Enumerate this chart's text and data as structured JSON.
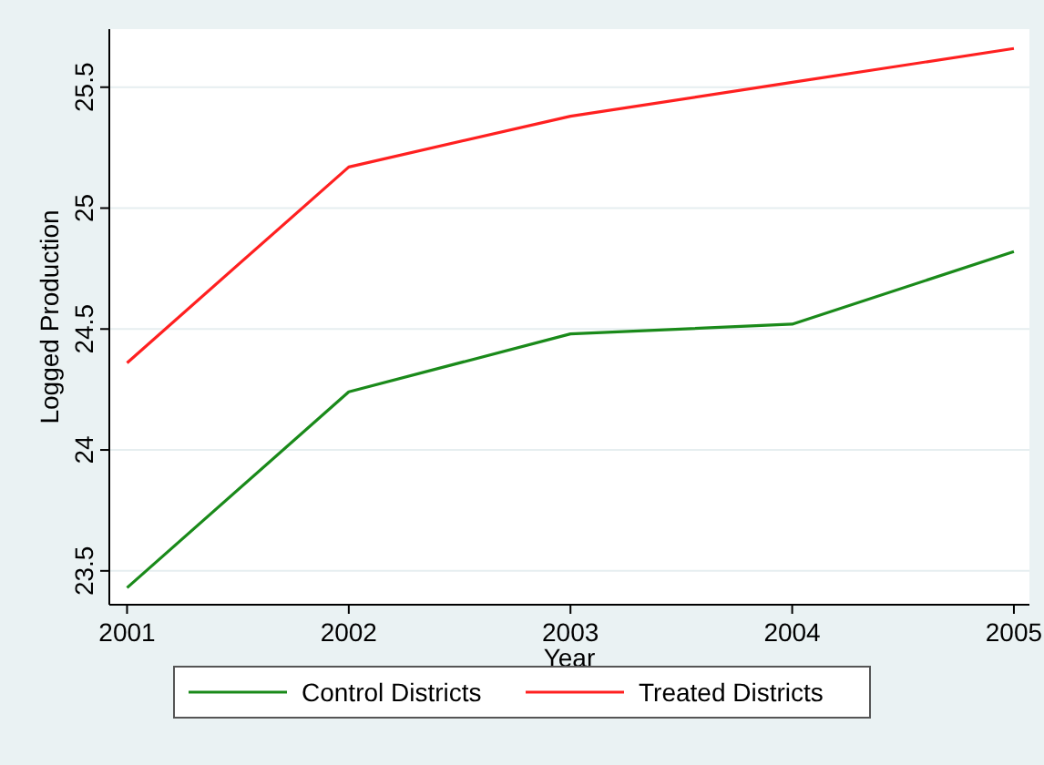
{
  "chart_data": {
    "type": "line",
    "xlabel": "Year",
    "ylabel": "Logged Production",
    "x": [
      2001,
      2002,
      2003,
      2004,
      2005
    ],
    "series": [
      {
        "name": "Control Districts",
        "color": "#1a8a1a",
        "values": [
          23.43,
          24.24,
          24.48,
          24.52,
          24.82
        ]
      },
      {
        "name": "Treated Districts",
        "color": "#ff2020",
        "values": [
          24.36,
          25.17,
          25.38,
          25.52,
          25.66
        ]
      }
    ],
    "xlim": [
      2000.92,
      2005.07
    ],
    "xticks": [
      2001,
      2002,
      2003,
      2004,
      2005
    ],
    "ylim": [
      23.36,
      25.74
    ],
    "yticks": [
      {
        "value": 23.5,
        "label": "23.5"
      },
      {
        "value": 24,
        "label": "24"
      },
      {
        "value": 24.5,
        "label": "24.5"
      },
      {
        "value": 25,
        "label": "25"
      },
      {
        "value": 25.5,
        "label": "25.5"
      }
    ],
    "grid": "y",
    "legend": "bottom",
    "marker": "none",
    "line_style": "solid"
  }
}
